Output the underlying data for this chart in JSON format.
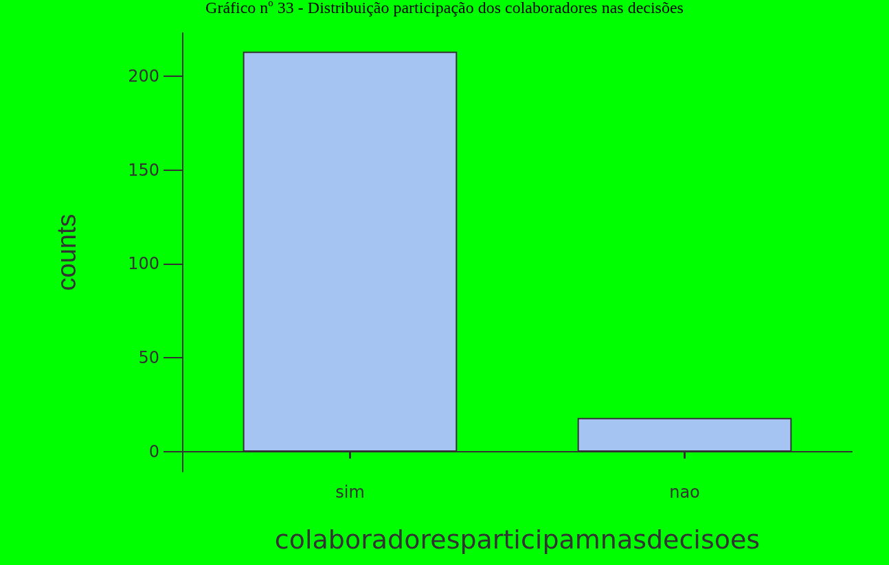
{
  "chart_data": {
    "type": "bar",
    "title": "Gráfico nº 33 - Distribuição participação dos colaboradores nas decisões",
    "xlabel": "colaboradoresparticipamnasdecisoes",
    "ylabel": "counts",
    "categories": [
      "sim",
      "nao"
    ],
    "values": [
      213,
      18
    ],
    "color": "#a6c4f2",
    "ylim": [
      -10.6,
      223
    ],
    "yticks": [
      0,
      50,
      100,
      150,
      200
    ],
    "grid": false
  }
}
